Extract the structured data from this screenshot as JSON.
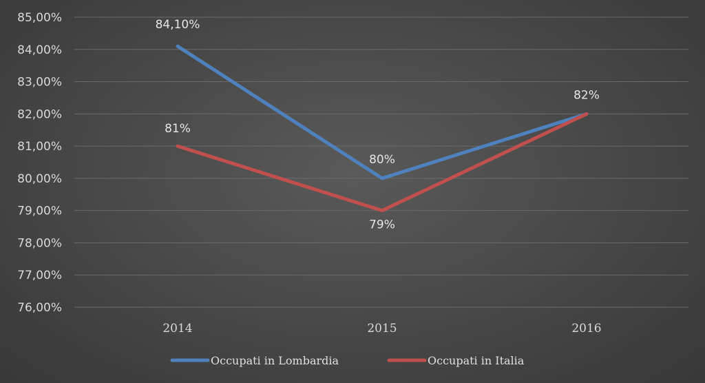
{
  "chart_data": {
    "type": "line",
    "categories": [
      "2014",
      "2015",
      "2016"
    ],
    "ylim": [
      76,
      85
    ],
    "yticks": [
      {
        "value": 85,
        "label": "85,00%"
      },
      {
        "value": 84,
        "label": "84,00%"
      },
      {
        "value": 83,
        "label": "83,00%"
      },
      {
        "value": 82,
        "label": "82,00%"
      },
      {
        "value": 81,
        "label": "81,00%"
      },
      {
        "value": 80,
        "label": "80,00%"
      },
      {
        "value": 79,
        "label": "79,00%"
      },
      {
        "value": 78,
        "label": "78,00%"
      },
      {
        "value": 77,
        "label": "77,00%"
      },
      {
        "value": 76,
        "label": "76,00%"
      }
    ],
    "grid": true,
    "legend_position": "bottom",
    "series": [
      {
        "name": "Occupati in Lombardia",
        "color": "#4f81bd",
        "values": [
          84.1,
          80,
          82
        ],
        "data_labels": [
          "84,10%",
          "80%",
          "82%"
        ]
      },
      {
        "name": "Occupati in Italia",
        "color": "#c0504d",
        "values": [
          81,
          79,
          82
        ],
        "data_labels": [
          "81%",
          "79%",
          ""
        ]
      }
    ]
  }
}
